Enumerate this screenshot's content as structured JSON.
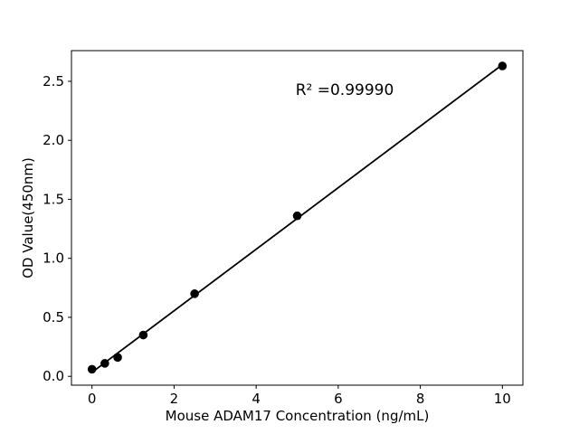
{
  "chart_data": {
    "type": "scatter",
    "title": "",
    "xlabel": "Mouse ADAM17 Concentration (ng/mL)",
    "ylabel": "OD Value(450nm)",
    "annotation": "R² =0.99990",
    "x": [
      0,
      0.3125,
      0.625,
      1.25,
      2.5,
      5,
      10
    ],
    "y": [
      0.06,
      0.11,
      0.16,
      0.35,
      0.7,
      1.36,
      2.63
    ],
    "fit": {
      "type": "linear",
      "r_squared": 0.9999
    },
    "xlim": [
      -0.5,
      10.5
    ],
    "ylim": [
      -0.075,
      2.76
    ],
    "x_ticks": [
      0,
      2,
      4,
      6,
      8,
      10
    ],
    "x_tick_labels": [
      "0",
      "2",
      "4",
      "6",
      "8",
      "10"
    ],
    "y_ticks": [
      0.0,
      0.5,
      1.0,
      1.5,
      2.0,
      2.5
    ],
    "y_tick_labels": [
      "0.0",
      "0.5",
      "1.0",
      "1.5",
      "2.0",
      "2.5"
    ],
    "marker_color": "#000000",
    "line_color": "#000000",
    "spine_color": "#000000",
    "background_color": "#ffffff",
    "grid": false,
    "legend": false
  }
}
